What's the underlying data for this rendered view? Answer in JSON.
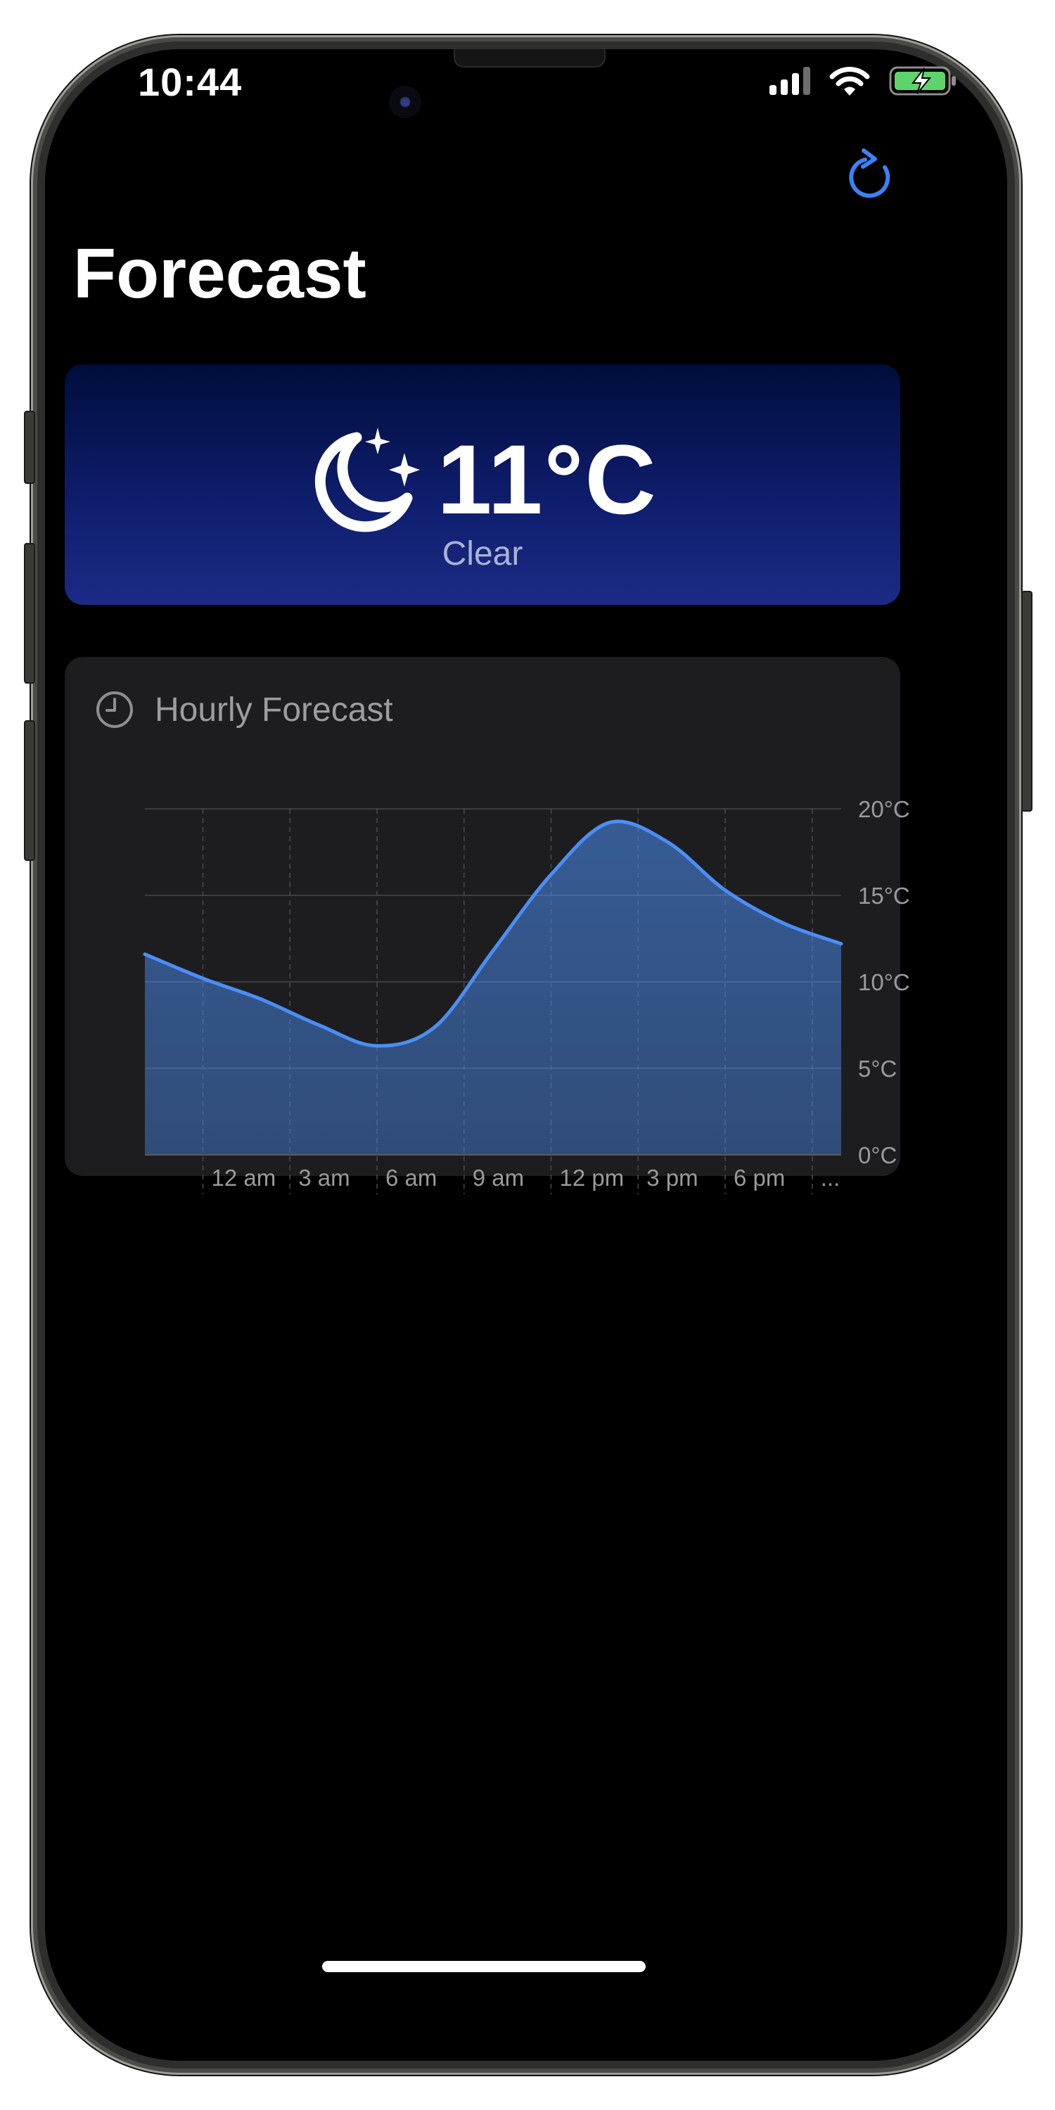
{
  "status_bar": {
    "time": "10:44"
  },
  "header": {
    "title": "Forecast",
    "refresh_icon": "arrow-clockwise-icon"
  },
  "current": {
    "icon": "moon-stars-icon",
    "temperature": "11°C",
    "condition": "Clear"
  },
  "hourly": {
    "icon": "clock-icon",
    "title": "Hourly Forecast"
  },
  "chart_data": {
    "type": "area",
    "title": "",
    "xlabel": "",
    "ylabel": "",
    "x_tick_labels": [
      "12 am",
      "3 am",
      "6 am",
      "9 am",
      "12 pm",
      "3 pm",
      "6 pm",
      "..."
    ],
    "y_tick_labels": [
      "0°C",
      "5°C",
      "10°C",
      "15°C",
      "20°C"
    ],
    "ylim": [
      0,
      20
    ],
    "y_axis_position": "right",
    "grid": true,
    "series": [
      {
        "color": "#4b8ef5",
        "x_hours": [
          -2,
          0,
          2,
          4,
          6,
          8,
          10,
          12,
          14,
          16,
          18,
          20,
          22
        ],
        "values": [
          11.6,
          10.2,
          9,
          7.5,
          6.3,
          7.4,
          11.8,
          16.2,
          19.2,
          18.1,
          15.3,
          13.4,
          12.2
        ]
      }
    ]
  },
  "colors": {
    "accent": "#3a82f6",
    "card_bg": "#1d1d1f",
    "current_gradient_top": "#000d3c",
    "current_gradient_bottom": "#1b2b86"
  }
}
